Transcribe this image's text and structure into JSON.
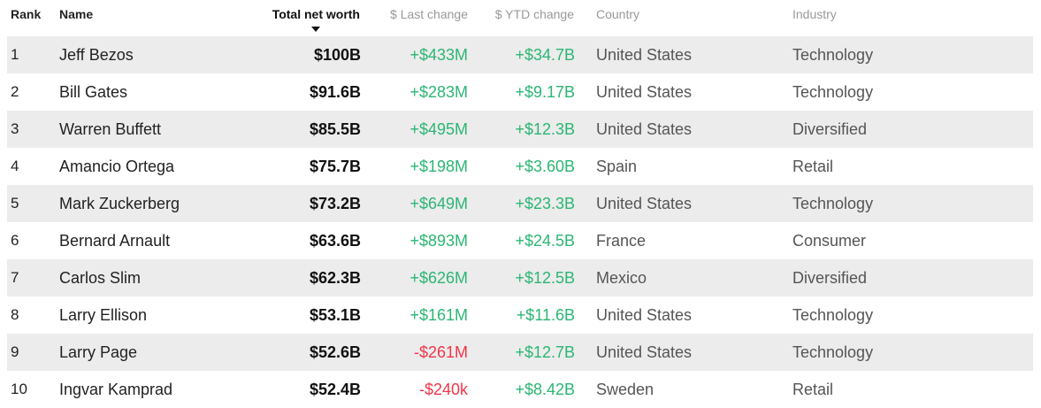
{
  "header": {
    "rank": "Rank",
    "name": "Name",
    "total_net_worth": "Total net worth",
    "last_change": "$ Last change",
    "ytd_change": "$ YTD change",
    "country": "Country",
    "industry": "Industry"
  },
  "sort": {
    "column": "Total net worth",
    "direction": "descending",
    "icon": "sort-descending-triangle"
  },
  "colors": {
    "positive": "#2bb673",
    "negative": "#f0364a",
    "row_shade": "#ececec"
  },
  "rows": [
    {
      "rank": "1",
      "name": "Jeff Bezos",
      "worth": "$100B",
      "last": "+$433M",
      "ytd": "+$34.7B",
      "country": "United States",
      "industry": "Technology"
    },
    {
      "rank": "2",
      "name": "Bill Gates",
      "worth": "$91.6B",
      "last": "+$283M",
      "ytd": "+$9.17B",
      "country": "United States",
      "industry": "Technology"
    },
    {
      "rank": "3",
      "name": "Warren Buffett",
      "worth": "$85.5B",
      "last": "+$495M",
      "ytd": "+$12.3B",
      "country": "United States",
      "industry": "Diversified"
    },
    {
      "rank": "4",
      "name": "Amancio Ortega",
      "worth": "$75.7B",
      "last": "+$198M",
      "ytd": "+$3.60B",
      "country": "Spain",
      "industry": "Retail"
    },
    {
      "rank": "5",
      "name": "Mark Zuckerberg",
      "worth": "$73.2B",
      "last": "+$649M",
      "ytd": "+$23.3B",
      "country": "United States",
      "industry": "Technology"
    },
    {
      "rank": "6",
      "name": "Bernard Arnault",
      "worth": "$63.6B",
      "last": "+$893M",
      "ytd": "+$24.5B",
      "country": "France",
      "industry": "Consumer"
    },
    {
      "rank": "7",
      "name": "Carlos Slim",
      "worth": "$62.3B",
      "last": "+$626M",
      "ytd": "+$12.5B",
      "country": "Mexico",
      "industry": "Diversified"
    },
    {
      "rank": "8",
      "name": "Larry Ellison",
      "worth": "$53.1B",
      "last": "+$161M",
      "ytd": "+$11.6B",
      "country": "United States",
      "industry": "Technology"
    },
    {
      "rank": "9",
      "name": "Larry Page",
      "worth": "$52.6B",
      "last": "-$261M",
      "ytd": "+$12.7B",
      "country": "United States",
      "industry": "Technology"
    },
    {
      "rank": "10",
      "name": "Ingvar Kamprad",
      "worth": "$52.4B",
      "last": "-$240k",
      "ytd": "+$8.42B",
      "country": "Sweden",
      "industry": "Retail"
    }
  ]
}
